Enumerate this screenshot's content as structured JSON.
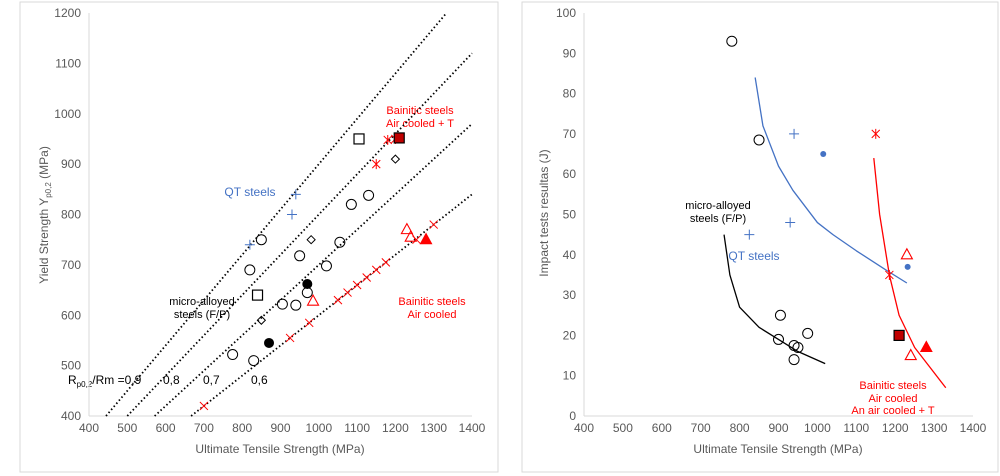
{
  "chart_data": [
    {
      "type": "scatter",
      "xlabel": "Ultimate Tensile Strength (MPa)",
      "ylabel": "Yield Strength Y",
      "ylabel_sub": "p0,2",
      "ylabel_unit": " (MPa)",
      "xlim": [
        400,
        1400
      ],
      "ylim": [
        400,
        1200
      ],
      "xticks": [
        400,
        500,
        600,
        700,
        800,
        900,
        1000,
        1100,
        1200,
        1300,
        1400
      ],
      "yticks": [
        400,
        500,
        600,
        700,
        800,
        900,
        1000,
        1100,
        1200
      ],
      "ratio_lines": [
        0.9,
        0.8,
        0.7,
        0.6
      ],
      "ratio_label": {
        "prefix": "R",
        "sub": "p0,2",
        "rest": "/Rm =0,9",
        "others": [
          "0,8",
          "0,7",
          "0,6"
        ]
      },
      "annotations": {
        "qt": "QT steels",
        "micro1": "micro-alloyed",
        "micro2": "steels (F/P)",
        "bt1": "Bainitic steels",
        "bt2": "Air cooled + T",
        "ba1": "Bainitic steels",
        "ba2": "Air cooled"
      },
      "series": [
        {
          "name": "open-circle",
          "marker": "circle",
          "color": "#000000",
          "fill": false,
          "points": [
            [
              850,
              750
            ],
            [
              820,
              690
            ],
            [
              950,
              718
            ],
            [
              905,
              622
            ],
            [
              940,
              620
            ],
            [
              970,
              645
            ],
            [
              1020,
              698
            ],
            [
              1055,
              745
            ],
            [
              1085,
              820
            ],
            [
              1130,
              838
            ],
            [
              775,
              522
            ],
            [
              830,
              510
            ]
          ]
        },
        {
          "name": "open-square",
          "marker": "square",
          "color": "#000000",
          "fill": false,
          "points": [
            [
              1105,
              950
            ],
            [
              840,
              640
            ]
          ]
        },
        {
          "name": "diamond",
          "marker": "diamond",
          "color": "#000000",
          "fill": false,
          "points": [
            [
              980,
              750
            ],
            [
              1200,
              910
            ],
            [
              850,
              590
            ]
          ]
        },
        {
          "name": "filled-circle",
          "marker": "circle",
          "color": "#000000",
          "fill": true,
          "points": [
            [
              870,
              545
            ],
            [
              970,
              662
            ]
          ]
        },
        {
          "name": "qt-plus",
          "marker": "plus",
          "color": "#4472c4",
          "fill": false,
          "points": [
            [
              940,
              840
            ],
            [
              930,
              800
            ],
            [
              820,
              740
            ]
          ]
        },
        {
          "name": "bainitic-t-asterisk",
          "marker": "asterisk",
          "color": "#ff0000",
          "fill": false,
          "points": [
            [
              1150,
              900
            ],
            [
              1180,
              948
            ],
            [
              1200,
              950
            ]
          ]
        },
        {
          "name": "bainitic-t-square",
          "marker": "square",
          "color": "#c00000",
          "fill": true,
          "points": [
            [
              1210,
              952
            ]
          ]
        },
        {
          "name": "bainitic-x",
          "marker": "x",
          "color": "#ff0000",
          "fill": false,
          "points": [
            [
              700,
              420
            ],
            [
              925,
              555
            ],
            [
              975,
              585
            ],
            [
              1050,
              630
            ],
            [
              1075,
              645
            ],
            [
              1100,
              660
            ],
            [
              1125,
              675
            ],
            [
              1150,
              690
            ],
            [
              1175,
              705
            ],
            [
              1255,
              750
            ],
            [
              1300,
              780
            ]
          ]
        },
        {
          "name": "open-triangle",
          "marker": "triangle",
          "color": "#ff0000",
          "fill": false,
          "points": [
            [
              985,
              628
            ],
            [
              1230,
              770
            ],
            [
              1240,
              755
            ]
          ]
        },
        {
          "name": "filled-triangle",
          "marker": "triangle",
          "color": "#ff0000",
          "fill": true,
          "points": [
            [
              1280,
              750
            ]
          ]
        }
      ]
    },
    {
      "type": "scatter",
      "xlabel": "Ultimate Tensile Strength (MPa)",
      "ylabel": "Impact tests resultas (J)",
      "xlim": [
        400,
        1400
      ],
      "ylim": [
        0,
        100
      ],
      "xticks": [
        400,
        500,
        600,
        700,
        800,
        900,
        1000,
        1100,
        1200,
        1300,
        1400
      ],
      "yticks": [
        0,
        10,
        20,
        30,
        40,
        50,
        60,
        70,
        80,
        90,
        100
      ],
      "annotations": {
        "micro1": "micro-alloyed",
        "micro2": "steels (F/P)",
        "qt": "QT steels",
        "b1": "Bainitic steels",
        "b2": "Air cooled",
        "b3": "An air cooled + T"
      },
      "series": [
        {
          "name": "open-circle",
          "marker": "circle",
          "color": "#000000",
          "fill": false,
          "points": [
            [
              780,
              93
            ],
            [
              850,
              68.5
            ],
            [
              905,
              25
            ],
            [
              900,
              19
            ],
            [
              940,
              17.5
            ],
            [
              950,
              17
            ],
            [
              940,
              14
            ],
            [
              975,
              20.5
            ]
          ]
        },
        {
          "name": "qt-plus",
          "marker": "plus",
          "color": "#4472c4",
          "fill": false,
          "points": [
            [
              940,
              70
            ],
            [
              930,
              48
            ],
            [
              825,
              45
            ]
          ]
        },
        {
          "name": "blue-dot",
          "marker": "dot",
          "color": "#4472c4",
          "fill": true,
          "points": [
            [
              1015,
              65
            ],
            [
              1232,
              37
            ]
          ]
        },
        {
          "name": "asterisk",
          "marker": "asterisk",
          "color": "#ff0000",
          "fill": false,
          "points": [
            [
              1150,
              70
            ],
            [
              1185,
              35
            ]
          ]
        },
        {
          "name": "open-triangle",
          "marker": "triangle",
          "color": "#ff0000",
          "fill": false,
          "points": [
            [
              1230,
              40
            ],
            [
              1240,
              15
            ]
          ]
        },
        {
          "name": "filled-triangle",
          "marker": "triangle",
          "color": "#ff0000",
          "fill": true,
          "points": [
            [
              1280,
              17
            ]
          ]
        },
        {
          "name": "square",
          "marker": "square",
          "color": "#c00000",
          "fill": true,
          "points": [
            [
              1210,
              20
            ]
          ]
        }
      ],
      "trendlines": [
        {
          "name": "micro-alloyed-trend",
          "color": "#000000",
          "points": [
            [
              760,
              45
            ],
            [
              775,
              35
            ],
            [
              800,
              27
            ],
            [
              850,
              22
            ],
            [
              900,
              19
            ],
            [
              950,
              16
            ],
            [
              1020,
              13
            ]
          ]
        },
        {
          "name": "qt-trend",
          "color": "#4472c4",
          "points": [
            [
              840,
              84
            ],
            [
              860,
              72
            ],
            [
              900,
              62
            ],
            [
              937,
              56
            ],
            [
              1000,
              48
            ],
            [
              1040,
              45
            ],
            [
              1100,
              41
            ],
            [
              1180,
              36
            ],
            [
              1230,
              33
            ]
          ]
        },
        {
          "name": "bainitic-trend",
          "color": "#ff0000",
          "points": [
            [
              1145,
              64
            ],
            [
              1160,
              50
            ],
            [
              1185,
              35
            ],
            [
              1210,
              25
            ],
            [
              1250,
              17
            ],
            [
              1290,
              12
            ],
            [
              1330,
              7
            ]
          ]
        }
      ]
    }
  ]
}
